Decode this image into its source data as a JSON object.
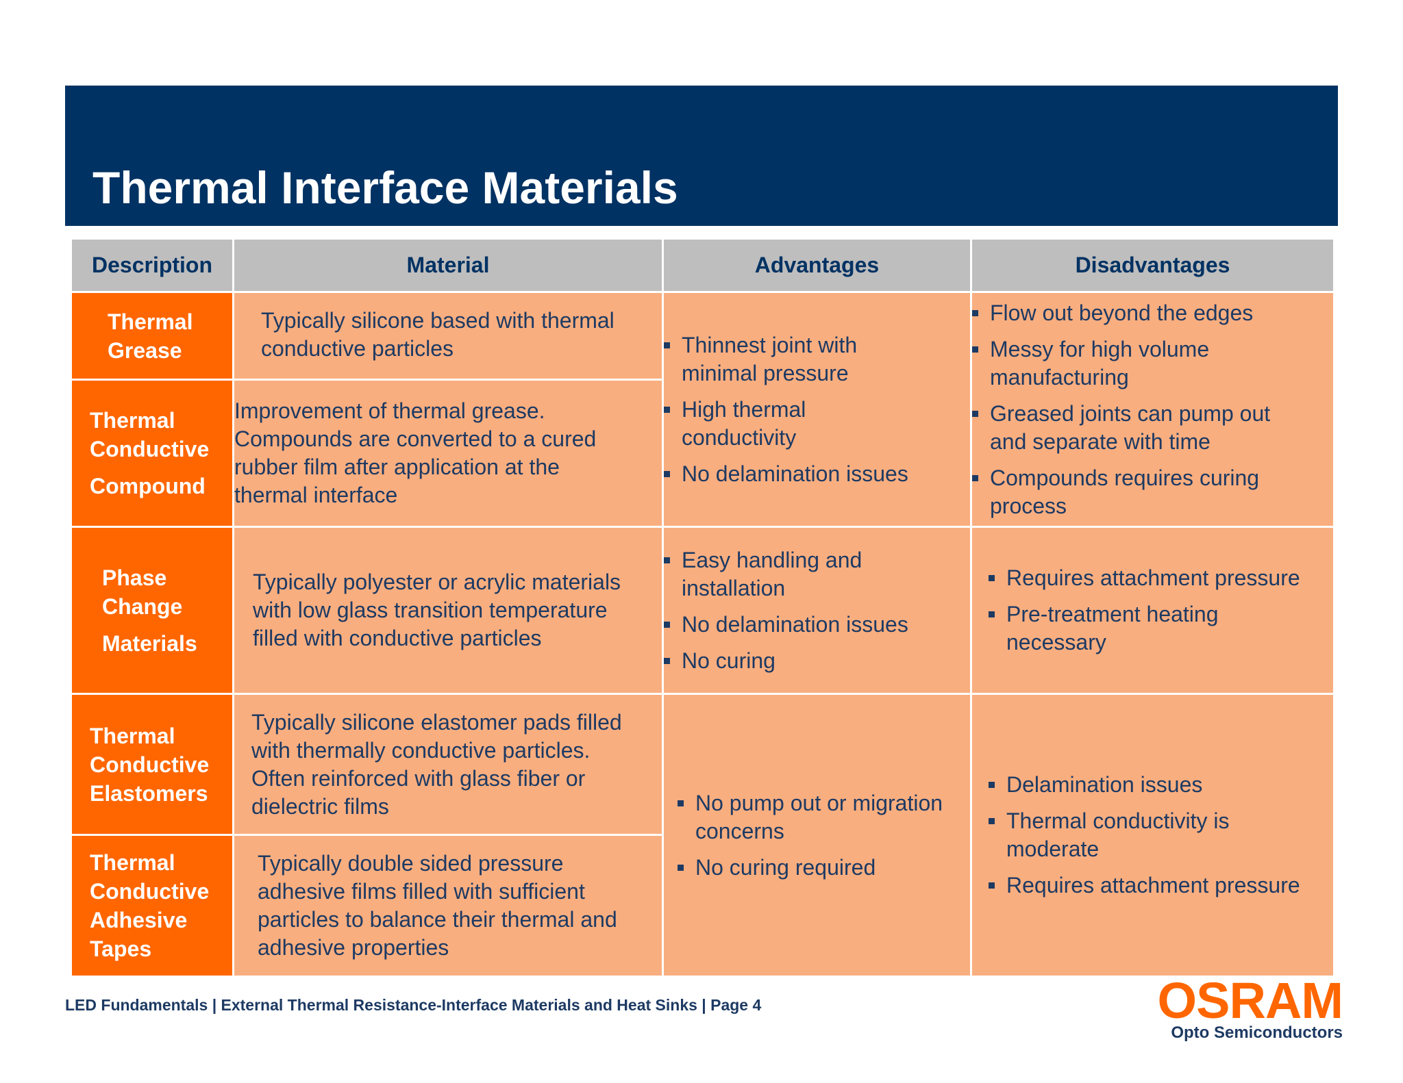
{
  "header": {
    "title": "Thermal Interface Materials"
  },
  "table": {
    "columns": [
      "Description",
      "Material",
      "Advantages",
      "Disadvantages"
    ],
    "rows": [
      {
        "description": [
          "Thermal",
          "Grease"
        ],
        "material": [
          "Typically silicone based with thermal",
          "conductive particles"
        ]
      },
      {
        "description": [
          "Thermal",
          "Conductive",
          "Compound"
        ],
        "material": [
          "Improvement of thermal grease.",
          "Compounds are converted to a cured",
          "rubber film after application at the",
          "thermal interface"
        ]
      },
      {
        "description": [
          "Phase",
          "Change",
          "Materials"
        ],
        "material": [
          "Typically polyester or acrylic materials",
          "with low glass transition temperature",
          "filled with conductive particles"
        ]
      },
      {
        "description": [
          "Thermal",
          "Conductive",
          "Elastomers"
        ],
        "material": [
          "Typically silicone elastomer pads filled",
          "with thermally conductive particles.",
          "Often reinforced with glass fiber or",
          "dielectric films"
        ]
      },
      {
        "description": [
          "Thermal",
          "Conductive",
          "Adhesive",
          "Tapes"
        ],
        "material": [
          "Typically double sided pressure",
          "adhesive films filled with sufficient",
          "particles to balance their thermal and",
          "adhesive properties"
        ]
      }
    ],
    "groups": [
      {
        "advantages": [
          [
            "Thinnest joint with",
            "minimal pressure"
          ],
          [
            "High thermal",
            "conductivity"
          ],
          [
            "No delamination issues"
          ]
        ],
        "disadvantages": [
          [
            "Flow out beyond the edges"
          ],
          [
            "Messy for high volume",
            "manufacturing"
          ],
          [
            "Greased joints can pump out",
            "and separate with time"
          ],
          [
            "Compounds requires curing",
            "process"
          ]
        ]
      },
      {
        "advantages": [
          [
            "Easy handling and",
            "installation"
          ],
          [
            "No delamination issues"
          ],
          [
            "No curing"
          ]
        ],
        "disadvantages": [
          [
            "Requires attachment pressure"
          ],
          [
            "Pre-treatment heating",
            "necessary"
          ]
        ]
      },
      {
        "advantages": [
          [
            "No pump out or migration",
            "concerns"
          ],
          [
            "No curing required"
          ]
        ],
        "disadvantages": [
          [
            "Delamination issues"
          ],
          [
            "Thermal conductivity is",
            "moderate"
          ],
          [
            "Requires attachment pressure"
          ]
        ]
      }
    ]
  },
  "footer": {
    "text": "LED Fundamentals | External Thermal Resistance-Interface Materials and Heat Sinks |  Page 4"
  },
  "logo": {
    "brand": "OSRAM",
    "subtitle": "Opto Semiconductors"
  },
  "colors": {
    "header_bg": "#003263",
    "accent_orange": "#ff6600",
    "cell_bg": "#f9ae7f",
    "table_header_bg": "#bfbebe",
    "text_navy": "#1d3a63"
  }
}
